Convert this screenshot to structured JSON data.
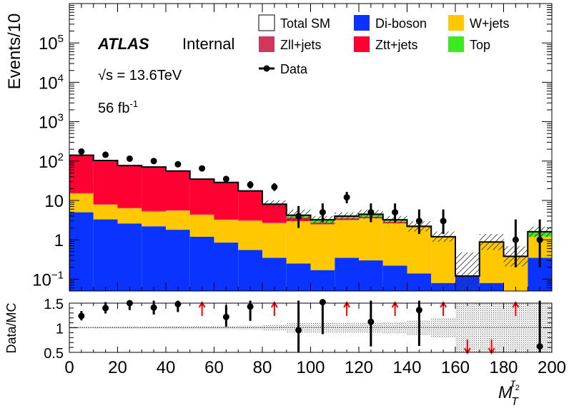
{
  "chart_data": {
    "type": "bar",
    "stacked": true,
    "log_y": true,
    "ylabel": "Events/10",
    "ylim": [
      0.05,
      1000000
    ],
    "yticks": [
      {
        "v": 0.1,
        "base": "10",
        "exp": "−1"
      },
      {
        "v": 1,
        "base": "1",
        "exp": ""
      },
      {
        "v": 10,
        "base": "10",
        "exp": ""
      },
      {
        "v": 100,
        "base": "10",
        "exp": "2"
      },
      {
        "v": 1000,
        "base": "10",
        "exp": "3"
      },
      {
        "v": 10000,
        "base": "10",
        "exp": "4"
      },
      {
        "v": 100000,
        "base": "10",
        "exp": "5"
      }
    ],
    "xlabel_main": "M",
    "xlabel_sub": "T",
    "xlabel_sup": "τ",
    "xlabel_supsub": "2",
    "xlim": [
      0,
      200
    ],
    "xticks": [
      "0",
      "20",
      "40",
      "60",
      "80",
      "100",
      "120",
      "140",
      "160",
      "180",
      "200"
    ],
    "bin_edges": [
      0,
      10,
      20,
      30,
      40,
      50,
      60,
      70,
      80,
      90,
      100,
      110,
      120,
      130,
      140,
      150,
      160,
      170,
      180,
      190,
      200
    ],
    "atlas_label": "ATLAS",
    "atlas_sublabel": "Internal",
    "energy_label": "√s = 13.6TeV",
    "lumi_label": "56 fb",
    "lumi_exp": "-1",
    "series": [
      {
        "name": "Di-boson",
        "color": "#0A33FF",
        "values": [
          5.0,
          3.3,
          2.6,
          2.2,
          1.8,
          1.2,
          0.85,
          0.55,
          0.35,
          0.25,
          0.17,
          0.35,
          0.3,
          0.22,
          0.14,
          0.08,
          0.12,
          0.08,
          0.0,
          0.35
        ]
      },
      {
        "name": "W+jets",
        "color": "#FFC800",
        "values": [
          10.0,
          4.5,
          3.7,
          3.0,
          3.7,
          3.1,
          2.35,
          2.5,
          2.3,
          2.7,
          2.3,
          2.8,
          3.2,
          2.4,
          1.96,
          1.12,
          0.0,
          0.8,
          0.38,
          0.85
        ]
      },
      {
        "name": "Zll+jets",
        "color": "#D2375A",
        "values": [
          0.3,
          0.2,
          0.2,
          0.2,
          0.2,
          0.1,
          0.1,
          0.1,
          0.1,
          0.05,
          0.05,
          0.05,
          0.05,
          0.0,
          0.0,
          0.0,
          0.0,
          0.0,
          0.0,
          0.0
        ]
      },
      {
        "name": "Ztt+jets",
        "color": "#FF0033",
        "values": [
          125.0,
          95.0,
          70.0,
          65.0,
          50.0,
          30.0,
          25.0,
          14.0,
          5.0,
          0.6,
          0.2,
          0.3,
          0.3,
          0.2,
          0.05,
          0.0,
          0.0,
          0.0,
          0.0,
          0.0
        ]
      },
      {
        "name": "Top",
        "color": "#3CEB1E",
        "values": [
          0.3,
          0.3,
          0.3,
          0.3,
          0.3,
          0.3,
          0.3,
          0.3,
          0.3,
          0.6,
          0.5,
          0.5,
          0.6,
          0.4,
          0.05,
          0.0,
          0.0,
          0.0,
          0.0,
          0.4
        ]
      }
    ],
    "total_sm": [
      140.6,
      103.3,
      76.8,
      70.7,
      56.0,
      34.7,
      28.6,
      17.45,
      8.05,
      4.2,
      3.22,
      4.0,
      4.45,
      3.22,
      2.2,
      1.2,
      0.12,
      0.88,
      0.38,
      1.6
    ],
    "data": {
      "name": "Data",
      "x": [
        5,
        15,
        25,
        35,
        45,
        55,
        65,
        75,
        85,
        95,
        105,
        115,
        125,
        135,
        145,
        155,
        165,
        175,
        185,
        195
      ],
      "y": [
        175,
        145,
        115,
        100,
        83,
        65,
        35,
        25,
        22,
        4,
        5,
        12,
        5,
        5,
        3,
        3,
        0,
        0,
        1,
        1
      ],
      "err_lo": [
        13,
        12,
        11,
        10,
        9,
        8,
        6,
        5,
        4.6,
        2.0,
        2.2,
        3.5,
        2.2,
        2.2,
        1.6,
        1.6,
        0,
        0,
        0.8,
        0.8
      ],
      "err_hi": [
        14,
        13,
        12,
        11,
        10,
        9,
        7,
        6,
        5.5,
        3.2,
        3.4,
        4.5,
        3.4,
        3.4,
        2.9,
        2.9,
        0,
        0,
        2.3,
        2.3
      ]
    },
    "legend": [
      {
        "label": "Total SM",
        "kind": "box-open",
        "color": "#000000",
        "col": 0,
        "row": 0
      },
      {
        "label": "Di-boson",
        "kind": "box",
        "color": "#0A33FF",
        "col": 1,
        "row": 0
      },
      {
        "label": "W+jets",
        "kind": "box",
        "color": "#FFC800",
        "col": 2,
        "row": 0
      },
      {
        "label": "Zll+jets",
        "kind": "box",
        "color": "#D2375A",
        "col": 0,
        "row": 1
      },
      {
        "label": "Ztt+jets",
        "kind": "box",
        "color": "#FF0033",
        "col": 1,
        "row": 1
      },
      {
        "label": "Top",
        "kind": "box",
        "color": "#3CEB1E",
        "col": 2,
        "row": 1
      },
      {
        "label": "Data",
        "kind": "marker",
        "color": "#000000",
        "col": 0,
        "row": 2
      }
    ],
    "ratio": {
      "ylabel": "Data/MC",
      "ylim": [
        0.5,
        1.5
      ],
      "yticks": [
        "0.5",
        "1",
        "1.5"
      ],
      "points": [
        {
          "x": 5,
          "y": 1.24,
          "lo": 0.09,
          "hi": 0.1
        },
        {
          "x": 15,
          "y": 1.4,
          "lo": 0.11,
          "hi": 0.12
        },
        {
          "x": 25,
          "y": 1.5,
          "lo": 0.14,
          "hi": 0.15
        },
        {
          "x": 35,
          "y": 1.41,
          "lo": 0.14,
          "hi": 0.15
        },
        {
          "x": 45,
          "y": 1.48,
          "lo": 0.16,
          "hi": 0.18
        },
        {
          "x": 65,
          "y": 1.22,
          "lo": 0.2,
          "hi": 0.24
        },
        {
          "x": 75,
          "y": 1.43,
          "lo": 0.29,
          "hi": 0.34
        },
        {
          "x": 95,
          "y": 0.95,
          "lo": 0.48,
          "hi": 0.76
        },
        {
          "x": 105,
          "y": 1.55,
          "lo": 0.68,
          "hi": 1.05
        },
        {
          "x": 125,
          "y": 1.12,
          "lo": 0.5,
          "hi": 0.76
        },
        {
          "x": 145,
          "y": 1.36,
          "lo": 0.73,
          "hi": 1.32
        },
        {
          "x": 195,
          "y": 0.62,
          "lo": 0.5,
          "hi": 1.4
        }
      ],
      "up_arrows": [
        55,
        85,
        115,
        135,
        155,
        185
      ],
      "down_arrows": [
        165,
        175
      ],
      "band": [
        0.015,
        0.02,
        0.025,
        0.025,
        0.03,
        0.03,
        0.035,
        0.04,
        0.05,
        0.1,
        0.1,
        0.1,
        0.1,
        0.12,
        0.15,
        0.2,
        0.5,
        0.5,
        0.5,
        0.5
      ]
    }
  }
}
